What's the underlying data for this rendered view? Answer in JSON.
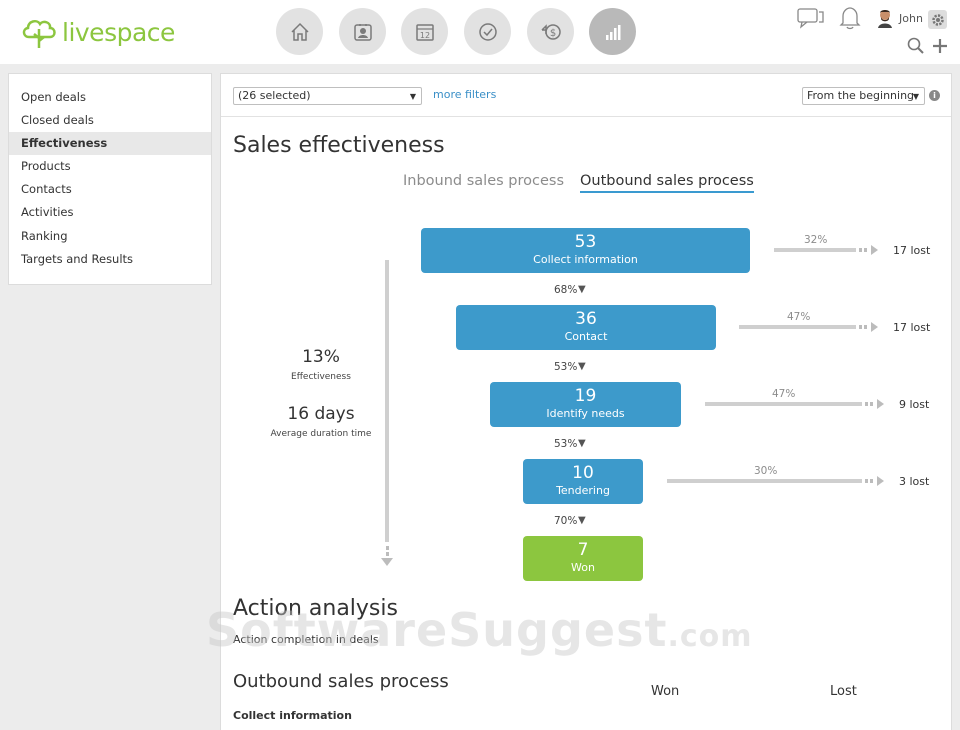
{
  "app": {
    "name": "livespace",
    "accent": "#8cc63f",
    "stage_color": "#3d9acb",
    "won_color": "#8cc63f"
  },
  "header": {
    "nav": [
      {
        "name": "home-icon"
      },
      {
        "name": "contacts-icon"
      },
      {
        "name": "calendar-icon",
        "date": "12"
      },
      {
        "name": "tasks-icon"
      },
      {
        "name": "deals-icon"
      },
      {
        "name": "reports-icon",
        "active": true
      }
    ],
    "user": {
      "name": "John"
    }
  },
  "sidebar": {
    "items": [
      {
        "label": "Open deals"
      },
      {
        "label": "Closed deals"
      },
      {
        "label": "Effectiveness",
        "active": true
      },
      {
        "label": "Products"
      },
      {
        "label": "Contacts"
      },
      {
        "label": "Activities"
      },
      {
        "label": "Ranking"
      },
      {
        "label": "Targets and Results"
      }
    ]
  },
  "filters": {
    "selection": "(26 selected)",
    "more_filters": "more filters",
    "period": "From the beginning"
  },
  "effectiveness": {
    "title": "Sales effectiveness",
    "tabs": [
      {
        "label": "Inbound sales process",
        "active": false
      },
      {
        "label": "Outbound sales process",
        "active": true
      }
    ],
    "summary": {
      "rate": "13%",
      "rate_label": "Effectiveness",
      "duration": "16 days",
      "duration_label": "Average duration time"
    },
    "stages": [
      {
        "count": "53",
        "name": "Collect information",
        "lost_pct": "32%",
        "lost": "17 lost",
        "conversion": "68%"
      },
      {
        "count": "36",
        "name": "Contact",
        "lost_pct": "47%",
        "lost": "17 lost",
        "conversion": "53%"
      },
      {
        "count": "19",
        "name": "Identify needs",
        "lost_pct": "47%",
        "lost": "9 lost",
        "conversion": "53%"
      },
      {
        "count": "10",
        "name": "Tendering",
        "lost_pct": "30%",
        "lost": "3 lost",
        "conversion": "70%"
      }
    ],
    "won": {
      "count": "7",
      "name": "Won"
    }
  },
  "action_analysis": {
    "title": "Action analysis",
    "subtitle": "Action completion in deals",
    "process_title": "Outbound sales process",
    "col_won": "Won",
    "col_lost": "Lost",
    "first_stage": "Collect information"
  },
  "watermark": {
    "main": "SoftwareSuggest",
    "suffix": ".com"
  }
}
